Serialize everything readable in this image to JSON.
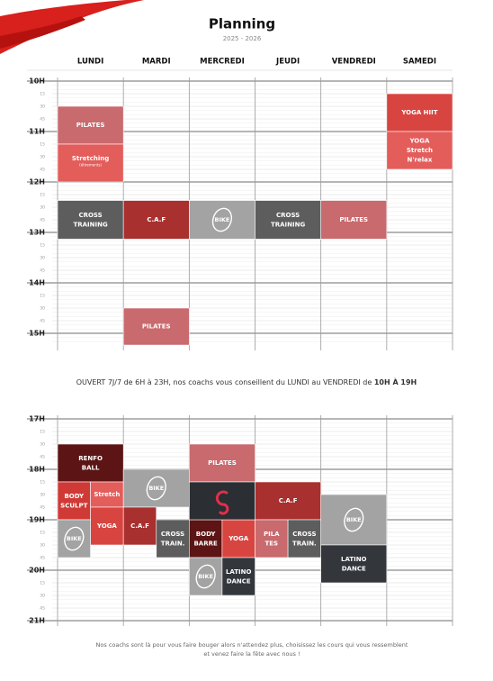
{
  "header": {
    "title": "Planning",
    "subtitle": "2025 - 2026"
  },
  "days": [
    "LUNDI",
    "MARDI",
    "MERCREDI",
    "JEUDI",
    "VENDREDI",
    "SAMEDI"
  ],
  "schedule_top": {
    "hours": [
      "10H",
      "11H",
      "12H",
      "13H",
      "14H",
      "15H"
    ],
    "minutes": [
      "15",
      "30",
      "45"
    ],
    "classes": [
      {
        "lines": [
          "PILATES"
        ]
      },
      {
        "lines": [
          "Stretching"
        ],
        "sub": "(étirements)"
      },
      {
        "lines": [
          "YOGA HIIT"
        ]
      },
      {
        "lines": [
          "YOGA",
          "Stretch",
          "N'relax"
        ]
      },
      {
        "lines": [
          "CROSS",
          "TRAINING"
        ]
      },
      {
        "lines": [
          "C.A.F"
        ]
      },
      {
        "lines": [
          "BIKE"
        ]
      },
      {
        "lines": [
          "CROSS",
          "TRAINING"
        ]
      },
      {
        "lines": [
          "PILATES"
        ]
      },
      {
        "lines": [
          "PILATES"
        ]
      }
    ]
  },
  "notice": {
    "text": "OUVERT 7J/7 de 6H à 23H, nos coachs vous conseillent du LUNDI au VENDREDI de ",
    "highlight": "10H À 19H"
  },
  "schedule_bottom": {
    "hours": [
      "17H",
      "18H",
      "19H",
      "20H",
      "21H"
    ],
    "minutes": [
      "15",
      "30",
      "45"
    ],
    "classes": [
      {
        "lines": [
          "RENFO",
          "BALL"
        ]
      },
      {
        "lines": [
          "BODY",
          "SCULPT"
        ]
      },
      {
        "lines": [
          "Stretch"
        ]
      },
      {
        "lines": [
          "YOGA"
        ]
      },
      {
        "lines": [
          "BIKE"
        ]
      },
      {
        "lines": [
          "BIKE"
        ]
      },
      {
        "lines": [
          "C.A.F"
        ]
      },
      {
        "lines": [
          "CROSS",
          "TRAIN."
        ]
      },
      {
        "lines": [
          "PILATES"
        ]
      },
      {
        "lines": [
          "BODY",
          "BARRE"
        ]
      },
      {
        "lines": [
          "YOGA"
        ]
      },
      {
        "lines": [
          "BIKE"
        ]
      },
      {
        "lines": [
          "LATINO",
          "DANCE"
        ]
      },
      {
        "lines": [
          "C.A.F"
        ]
      },
      {
        "lines": [
          "PILA",
          "TES"
        ]
      },
      {
        "lines": [
          "CROSS",
          "TRAIN."
        ]
      },
      {
        "lines": [
          "BIKE"
        ]
      },
      {
        "lines": [
          "LATINO",
          "DANCE"
        ]
      }
    ]
  },
  "footer": [
    "Nos coachs sont là pour vous faire bouger alors n'attendez plus, choisissez les cours qui vous ressemblent",
    "et venez faire la fête avec nous !"
  ]
}
